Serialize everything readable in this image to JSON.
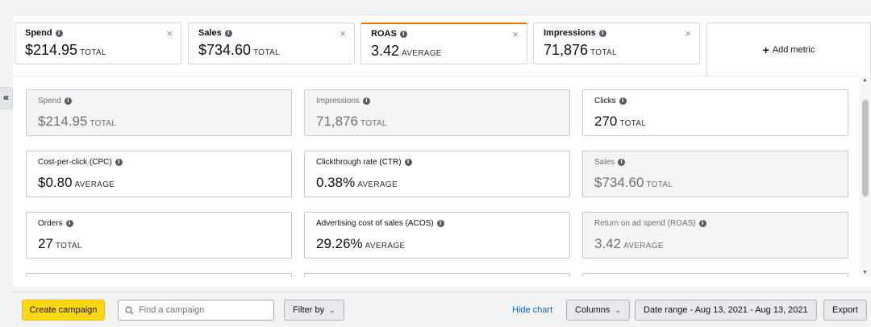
{
  "metric_tabs": [
    {
      "label": "Spend",
      "value": "$214.95",
      "unit": "TOTAL",
      "active": false
    },
    {
      "label": "Sales",
      "value": "$734.60",
      "unit": "TOTAL",
      "active": false
    },
    {
      "label": "ROAS",
      "value": "3.42",
      "unit": "AVERAGE",
      "active": true
    },
    {
      "label": "Impressions",
      "value": "71,876",
      "unit": "TOTAL",
      "active": false
    }
  ],
  "add_metric": {
    "label": "Add metric"
  },
  "metric_cards": [
    {
      "label": "Spend",
      "value": "$214.95",
      "unit": "TOTAL",
      "selected": true
    },
    {
      "label": "Impressions",
      "value": "71,876",
      "unit": "TOTAL",
      "selected": true
    },
    {
      "label": "Clicks",
      "value": "270",
      "unit": "TOTAL",
      "selected": false
    },
    {
      "label": "Cost-per-click (CPC)",
      "value": "$0.80",
      "unit": "AVERAGE",
      "selected": false
    },
    {
      "label": "Clickthrough rate (CTR)",
      "value": "0.38%",
      "unit": "AVERAGE",
      "selected": false
    },
    {
      "label": "Sales",
      "value": "$734.60",
      "unit": "TOTAL",
      "selected": true
    },
    {
      "label": "Orders",
      "value": "27",
      "unit": "TOTAL",
      "selected": false
    },
    {
      "label": "Advertising cost of sales (ACOS)",
      "value": "29.26%",
      "unit": "AVERAGE",
      "selected": false
    },
    {
      "label": "Return on ad spend (ROAS)",
      "value": "3.42",
      "unit": "AVERAGE",
      "selected": true
    }
  ],
  "toolbar": {
    "create_campaign": "Create campaign",
    "search_placeholder": "Find a campaign",
    "filter_by": "Filter by",
    "hide_chart": "Hide chart",
    "columns": "Columns",
    "date_range": "Date range - Aug 13, 2021 - Aug 13, 2021",
    "export": "Export"
  },
  "icons": {
    "info": "info-icon",
    "close": "close-icon",
    "search": "search-icon",
    "chevron": "chevron-down-icon",
    "collapse": "double-chevron-left-icon"
  },
  "colors": {
    "accent_tab": "#e77600",
    "primary_button": "#ffd814",
    "link": "#0066c0"
  }
}
